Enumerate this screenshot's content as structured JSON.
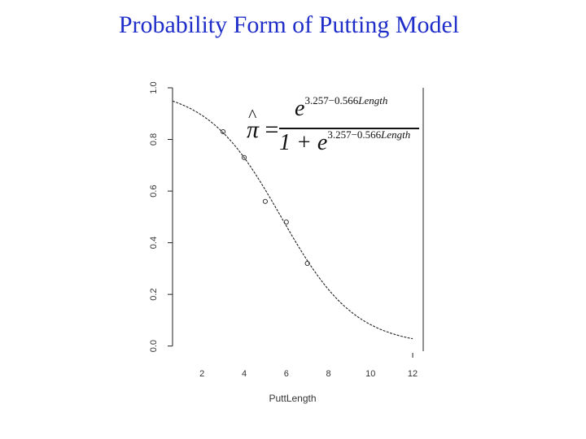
{
  "slide": {
    "title": "Probability Form of Putting Model"
  },
  "equation": {
    "lhs": "π",
    "hat": "^",
    "equals": "=",
    "numerator_base": "e",
    "exponent_numeric": "3.257−0.566",
    "exponent_variable": "Length",
    "denominator_prefix": "1 + e"
  },
  "chart_data": {
    "type": "scatter",
    "title": "",
    "xlabel": "PuttLength",
    "ylabel": "",
    "xlim": [
      0.6,
      12.5
    ],
    "ylim": [
      -0.02,
      1.0
    ],
    "xticks": [
      2,
      4,
      6,
      8,
      10,
      12
    ],
    "yticks": [
      0.0,
      0.2,
      0.4,
      0.6,
      0.8,
      1.0
    ],
    "xtick_labels": [
      "2",
      "4",
      "6",
      "8",
      "10",
      "12"
    ],
    "ytick_labels": [
      "0.0",
      "0.2",
      "0.4",
      "0.6",
      "0.8",
      "1.0"
    ],
    "series": [
      {
        "type": "scatter",
        "x": [
          3,
          4,
          5,
          6,
          7
        ],
        "y": [
          0.83,
          0.73,
          0.56,
          0.48,
          0.32
        ]
      },
      {
        "type": "line",
        "style": "dashed",
        "intercept": 3.257,
        "slope": -0.566,
        "x_range": [
          0.6,
          12
        ]
      }
    ],
    "grid": false,
    "legend": "none"
  },
  "colors": {
    "title": "#1f2ec9",
    "ink": "#222222"
  }
}
